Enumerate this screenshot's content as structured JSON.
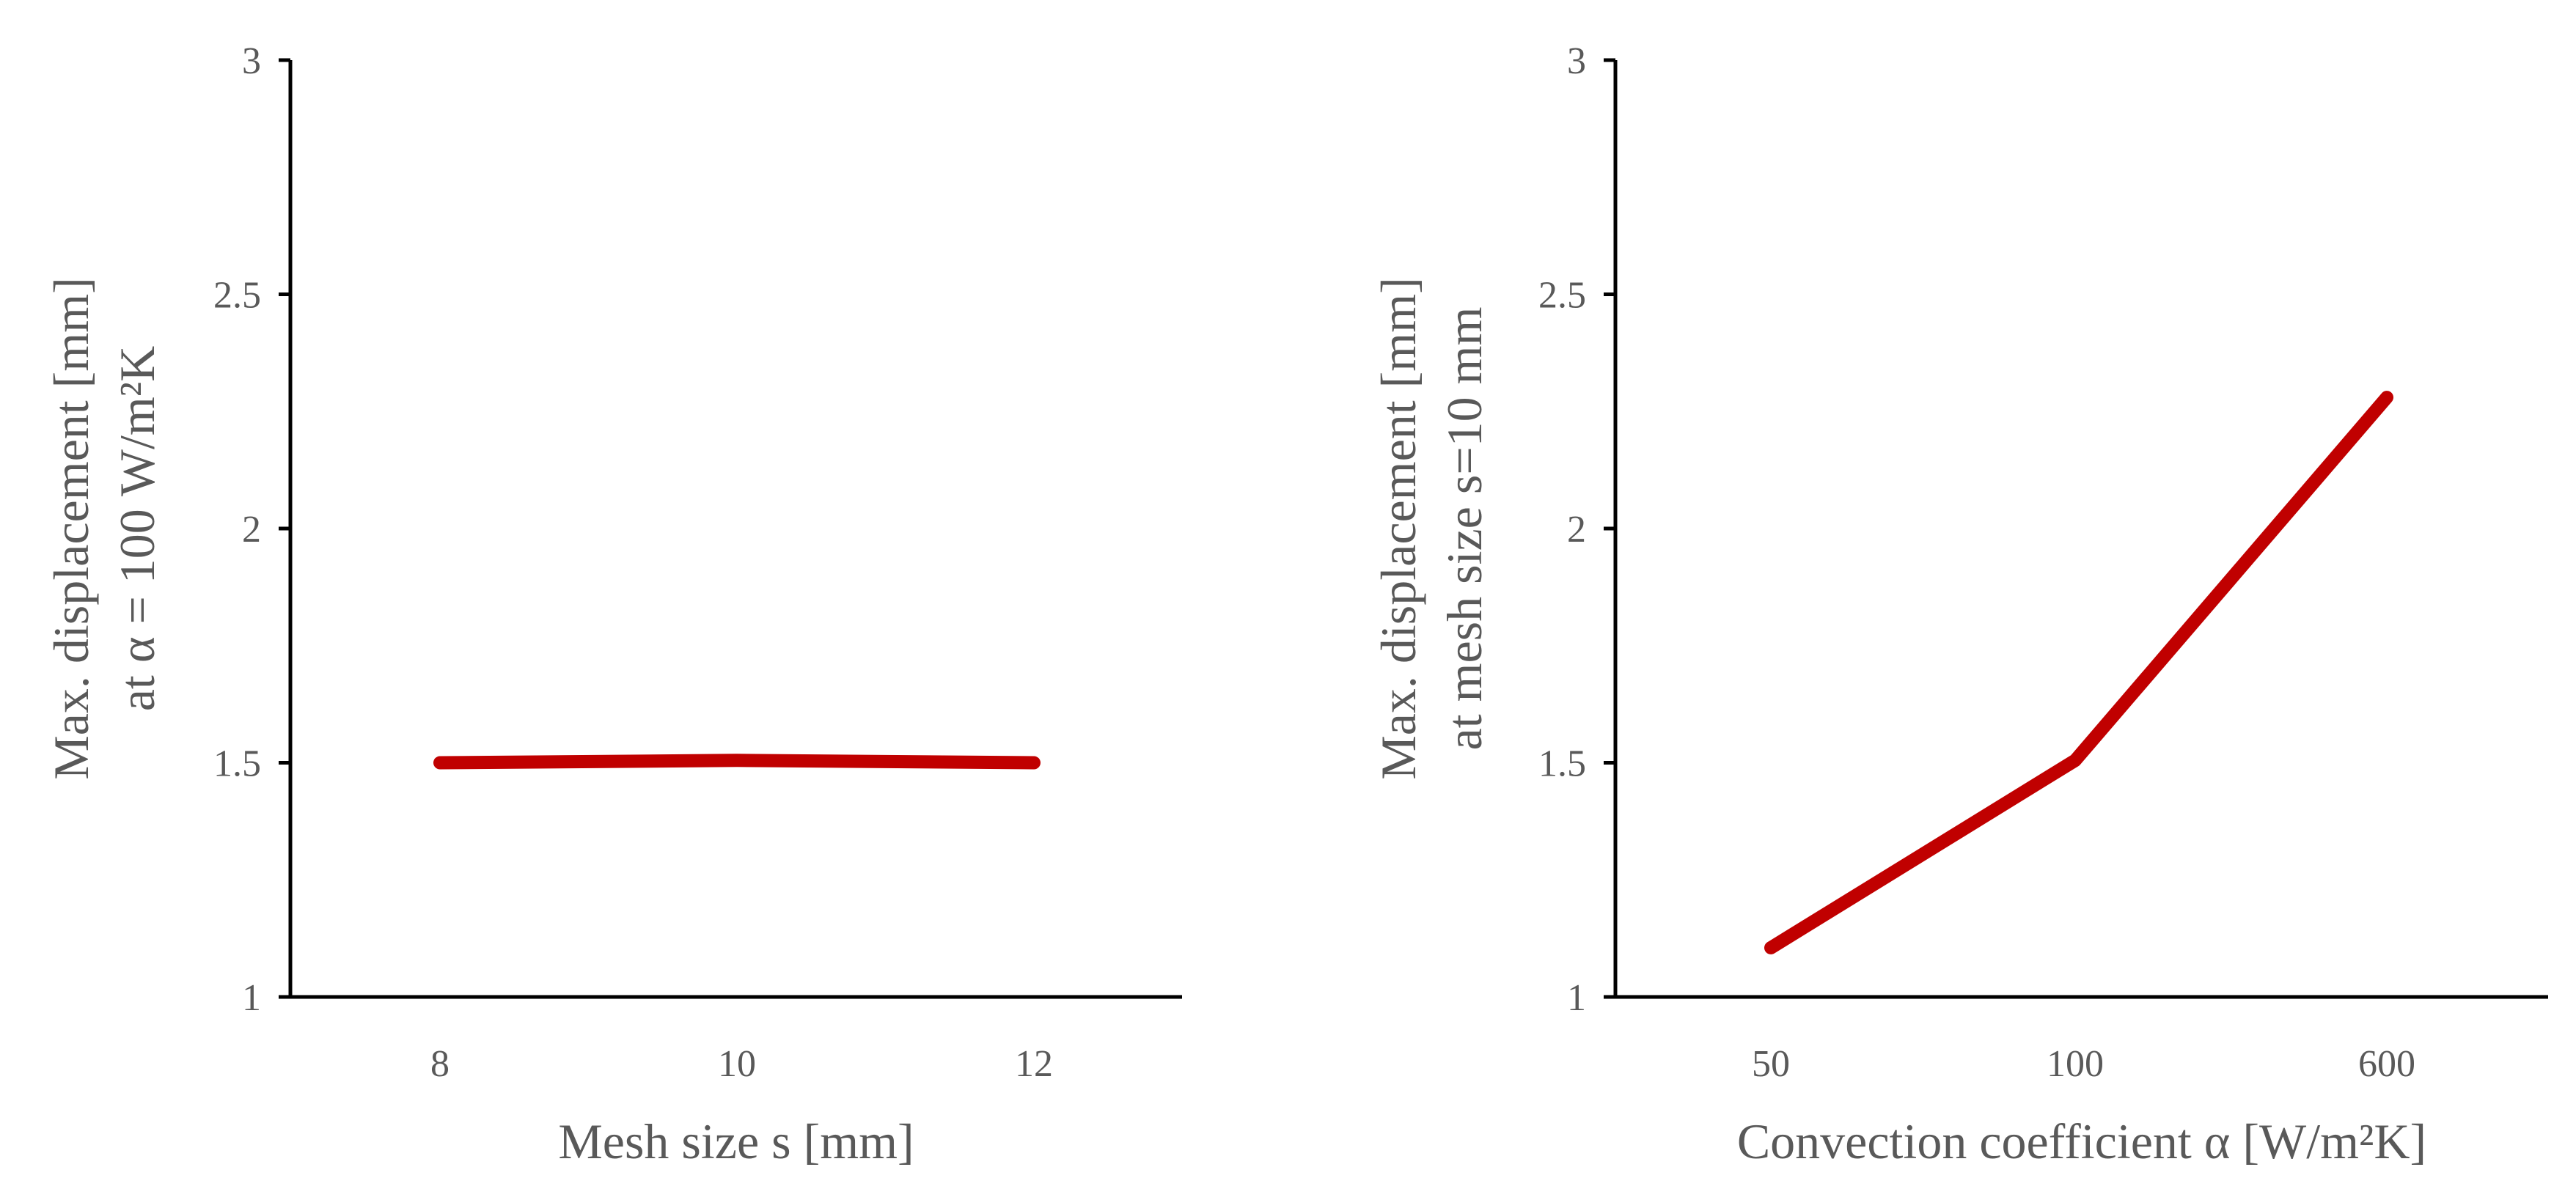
{
  "chart_data": [
    {
      "type": "line",
      "categories": [
        "8",
        "10",
        "12"
      ],
      "series": [
        {
          "values": [
            1.5,
            1.505,
            1.5
          ],
          "color": "#C00000"
        }
      ],
      "xlabel": "Mesh size s [mm]",
      "ylabel_line1": "Max. displacement  [mm]",
      "ylabel_line2": "at α = 100 W/m²K",
      "ylim": [
        1,
        3
      ],
      "yticks": [
        "1",
        "1.5",
        "2",
        "2.5",
        "3"
      ],
      "grid": false
    },
    {
      "type": "line",
      "categories": [
        "50",
        "100",
        "600"
      ],
      "series": [
        {
          "values": [
            1.105,
            1.505,
            2.28
          ],
          "color": "#C00000"
        }
      ],
      "xlabel": "Convection coefficient α [W/m²K]",
      "ylabel_line1": "Max. displacement  [mm]",
      "ylabel_line2": "at mesh size s=10 mm",
      "ylim": [
        1,
        3
      ],
      "yticks": [
        "1",
        "1.5",
        "2",
        "2.5",
        "3"
      ],
      "grid": false
    }
  ]
}
